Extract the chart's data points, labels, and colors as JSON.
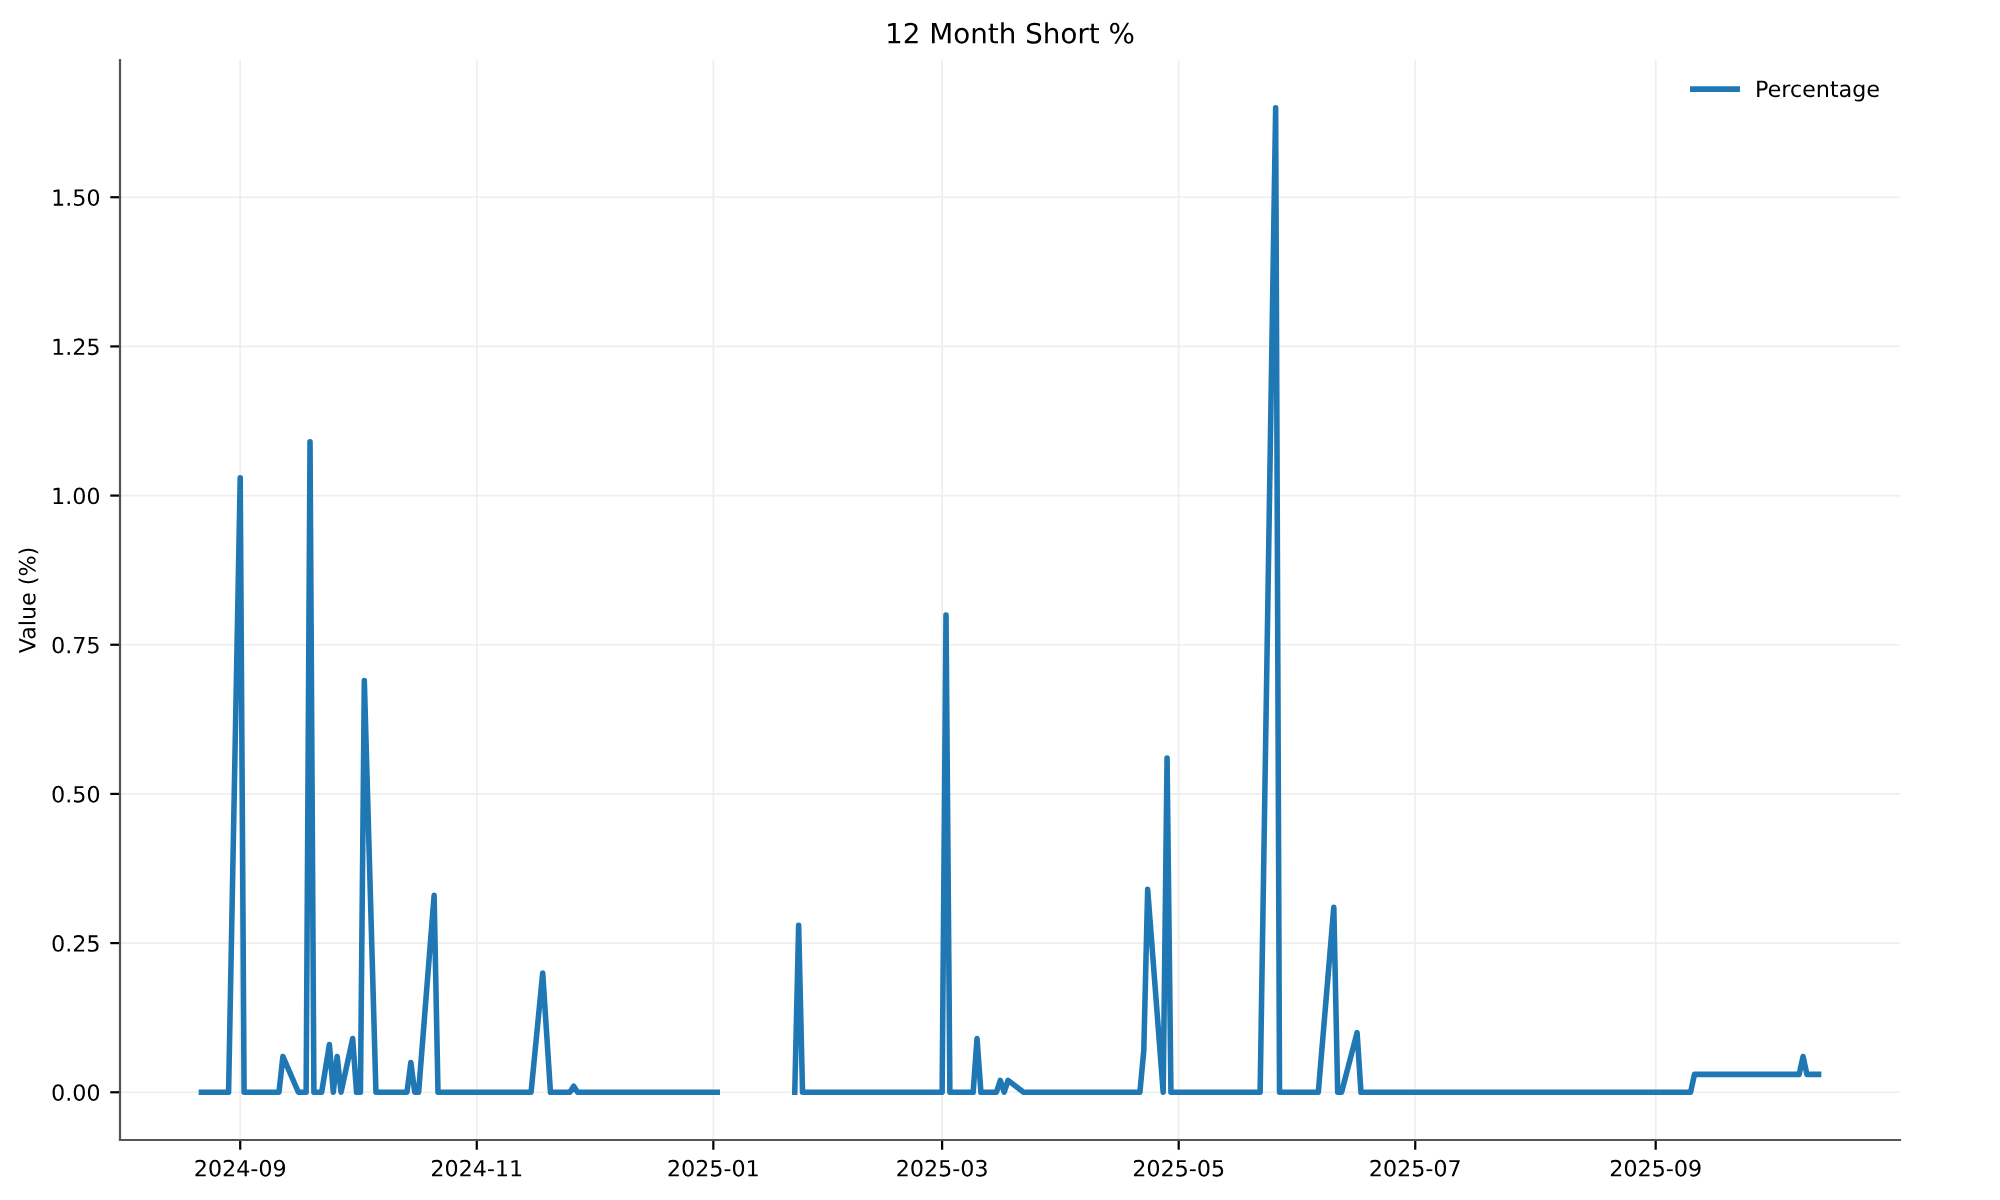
{
  "chart_data": {
    "type": "line",
    "title": "12 Month Short %",
    "ylabel": "Value (%)",
    "x": [
      "2024-08-22",
      "2024-08-29",
      "2024-09-01",
      "2024-09-02",
      "2024-09-11",
      "2024-09-12",
      "2024-09-16",
      "2024-09-18",
      "2024-09-19",
      "2024-09-20",
      "2024-09-22",
      "2024-09-24",
      "2024-09-25",
      "2024-09-26",
      "2024-09-27",
      "2024-09-30",
      "2024-10-01",
      "2024-10-02",
      "2024-10-03",
      "2024-10-06",
      "2024-10-14",
      "2024-10-15",
      "2024-10-16",
      "2024-10-17",
      "2024-10-21",
      "2024-10-22",
      "2024-11-15",
      "2024-11-18",
      "2024-11-20",
      "2024-11-25",
      "2024-11-26",
      "2024-11-27",
      "2025-01-02",
      "2025-01-12",
      "2025-01-22",
      "2025-01-23",
      "2025-01-24",
      "2025-03-01",
      "2025-03-02",
      "2025-03-03",
      "2025-03-09",
      "2025-03-10",
      "2025-03-11",
      "2025-03-15",
      "2025-03-16",
      "2025-03-17",
      "2025-03-18",
      "2025-03-22",
      "2025-04-21",
      "2025-04-22",
      "2025-04-23",
      "2025-04-27",
      "2025-04-28",
      "2025-04-29",
      "2025-05-22",
      "2025-05-26",
      "2025-05-27",
      "2025-06-06",
      "2025-06-10",
      "2025-06-11",
      "2025-06-12",
      "2025-06-16",
      "2025-06-17",
      "2025-09-10",
      "2025-09-11",
      "2025-10-08",
      "2025-10-09",
      "2025-10-10",
      "2025-10-13"
    ],
    "series": [
      {
        "name": "Percentage",
        "color": "#1f77b4",
        "values": [
          0,
          0,
          1.03,
          0,
          0,
          0.06,
          0,
          0,
          1.09,
          0,
          0,
          0.08,
          0,
          0.06,
          0,
          0.09,
          0,
          0,
          0.69,
          0,
          0,
          0.05,
          0,
          0,
          0.33,
          0,
          0,
          0.2,
          0,
          0,
          0.01,
          0,
          0,
          null,
          0,
          0.28,
          0,
          0,
          0.8,
          0,
          0,
          0.09,
          0,
          0,
          0.02,
          0,
          0.02,
          0,
          0,
          0.07,
          0.34,
          0,
          0.56,
          0,
          0,
          1.65,
          0,
          0,
          0.31,
          0,
          0,
          0.1,
          0,
          0,
          0.03,
          0.03,
          0.06,
          0.03,
          0.03
        ]
      }
    ],
    "xlim": [
      "2024-08-01",
      "2025-11-03"
    ],
    "xticks": [
      {
        "value": "2024-09-01",
        "label": "2024-09"
      },
      {
        "value": "2024-11-01",
        "label": "2024-11"
      },
      {
        "value": "2025-01-01",
        "label": "2025-01"
      },
      {
        "value": "2025-03-01",
        "label": "2025-03"
      },
      {
        "value": "2025-05-01",
        "label": "2025-05"
      },
      {
        "value": "2025-07-01",
        "label": "2025-07"
      },
      {
        "value": "2025-09-01",
        "label": "2025-09"
      }
    ],
    "ylim": [
      -0.08,
      1.73
    ],
    "yticks": [
      {
        "value": 0,
        "label": "0.00"
      },
      {
        "value": 0.25,
        "label": "0.25"
      },
      {
        "value": 0.5,
        "label": "0.50"
      },
      {
        "value": 0.75,
        "label": "0.75"
      },
      {
        "value": 1.0,
        "label": "1.00"
      },
      {
        "value": 1.25,
        "label": "1.25"
      },
      {
        "value": 1.5,
        "label": "1.50"
      }
    ],
    "grid": true,
    "legend": "top right",
    "marker": "none",
    "line_style": "solid"
  }
}
